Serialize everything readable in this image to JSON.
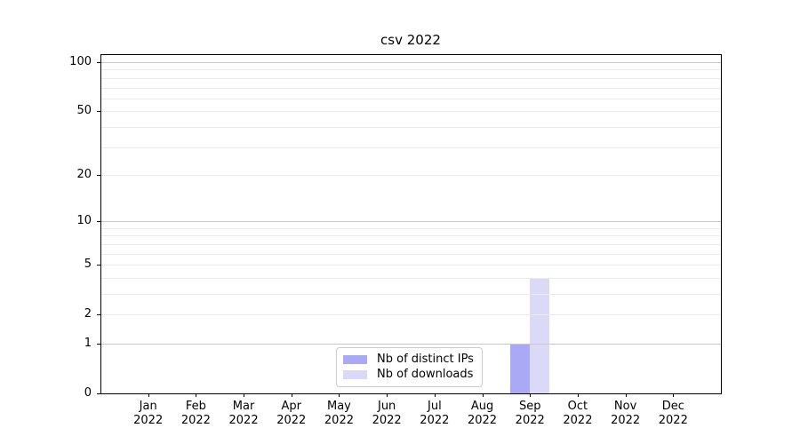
{
  "title": "csv 2022",
  "chart_data": {
    "type": "bar",
    "title": "csv 2022",
    "categories": [
      "Jan 2022",
      "Feb 2022",
      "Mar 2022",
      "Apr 2022",
      "May 2022",
      "Jun 2022",
      "Jul 2022",
      "Aug 2022",
      "Sep 2022",
      "Oct 2022",
      "Nov 2022",
      "Dec 2022"
    ],
    "series": [
      {
        "name": "Nb of distinct IPs",
        "color": "#a9a9f6",
        "values": [
          0,
          0,
          0,
          0,
          0,
          0,
          0,
          0,
          1,
          0,
          0,
          0
        ]
      },
      {
        "name": "Nb of downloads",
        "color": "#dadaf8",
        "values": [
          0,
          0,
          0,
          0,
          0,
          0,
          0,
          0,
          4,
          0,
          0,
          0
        ]
      }
    ],
    "xlabel": "",
    "ylabel": "",
    "yscale": "log1p",
    "ylim": [
      0,
      112
    ],
    "y_tick_labels": [
      0,
      1,
      2,
      5,
      10,
      20,
      50,
      100
    ],
    "grid_major": [
      1,
      10,
      100
    ],
    "grid_minor": [
      2,
      3,
      4,
      5,
      6,
      7,
      8,
      9,
      20,
      30,
      40,
      50,
      60,
      70,
      80,
      90
    ],
    "legend_position": "lower center inside plot",
    "colors": {
      "grid_major": "#c8c8c8",
      "grid_minor": "#ebebeb",
      "axis": "#000000",
      "background": "#ffffff"
    }
  }
}
